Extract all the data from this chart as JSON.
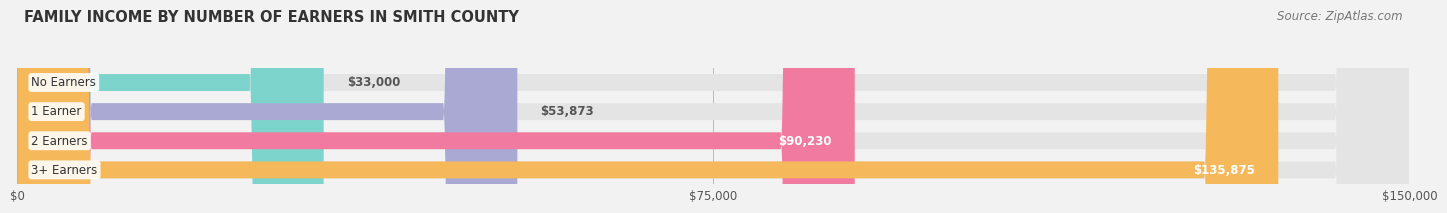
{
  "title": "FAMILY INCOME BY NUMBER OF EARNERS IN SMITH COUNTY",
  "source": "Source: ZipAtlas.com",
  "categories": [
    "No Earners",
    "1 Earner",
    "2 Earners",
    "3+ Earners"
  ],
  "values": [
    33000,
    53873,
    90230,
    135875
  ],
  "labels": [
    "$33,000",
    "$53,873",
    "$90,230",
    "$135,875"
  ],
  "bar_colors": [
    "#7dd4cc",
    "#a9a9d4",
    "#f07aa0",
    "#f5b85a"
  ],
  "label_colors": [
    "#555555",
    "#555555",
    "#ffffff",
    "#ffffff"
  ],
  "label_inside": [
    false,
    false,
    true,
    true
  ],
  "xlim": [
    0,
    150000
  ],
  "xticks": [
    0,
    75000,
    150000
  ],
  "xticklabels": [
    "$0",
    "$75,000",
    "$150,000"
  ],
  "bg_color": "#f2f2f2",
  "bar_bg_color": "#e4e4e4",
  "title_fontsize": 10.5,
  "source_fontsize": 8.5,
  "label_fontsize": 8.5,
  "category_fontsize": 8.5,
  "bar_height": 0.58,
  "fig_width": 14.06,
  "fig_height": 2.33
}
